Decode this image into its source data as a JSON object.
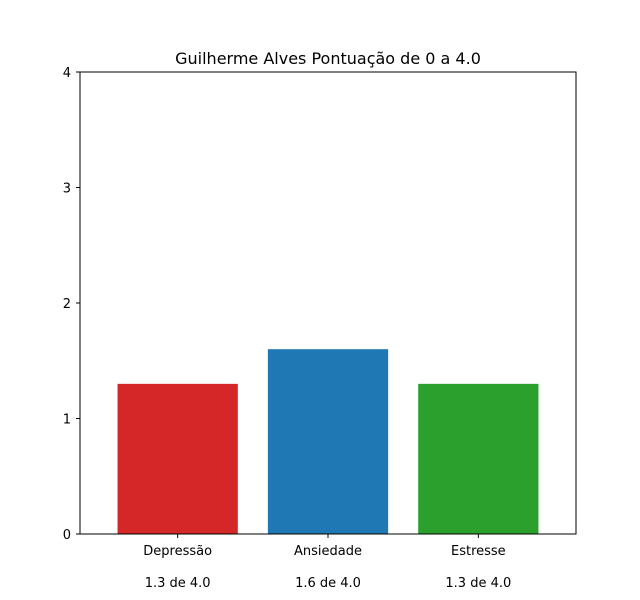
{
  "chart_data": {
    "type": "bar",
    "title": "Guilherme Alves Pontuação de 0 a 4.0",
    "xlabel": "",
    "ylabel": "",
    "categories": [
      "Depressão",
      "Ansiedade",
      "Estresse"
    ],
    "sublabels": [
      "1.3 de 4.0",
      "1.6 de 4.0",
      "1.3 de 4.0"
    ],
    "values": [
      1.3,
      1.6,
      1.3
    ],
    "colors": [
      "#d62728",
      "#1f77b4",
      "#2ca02c"
    ],
    "ylim": [
      0,
      4
    ],
    "yticks": [
      "0",
      "1",
      "2",
      "3",
      "4"
    ],
    "grid": false,
    "legend": "none"
  }
}
